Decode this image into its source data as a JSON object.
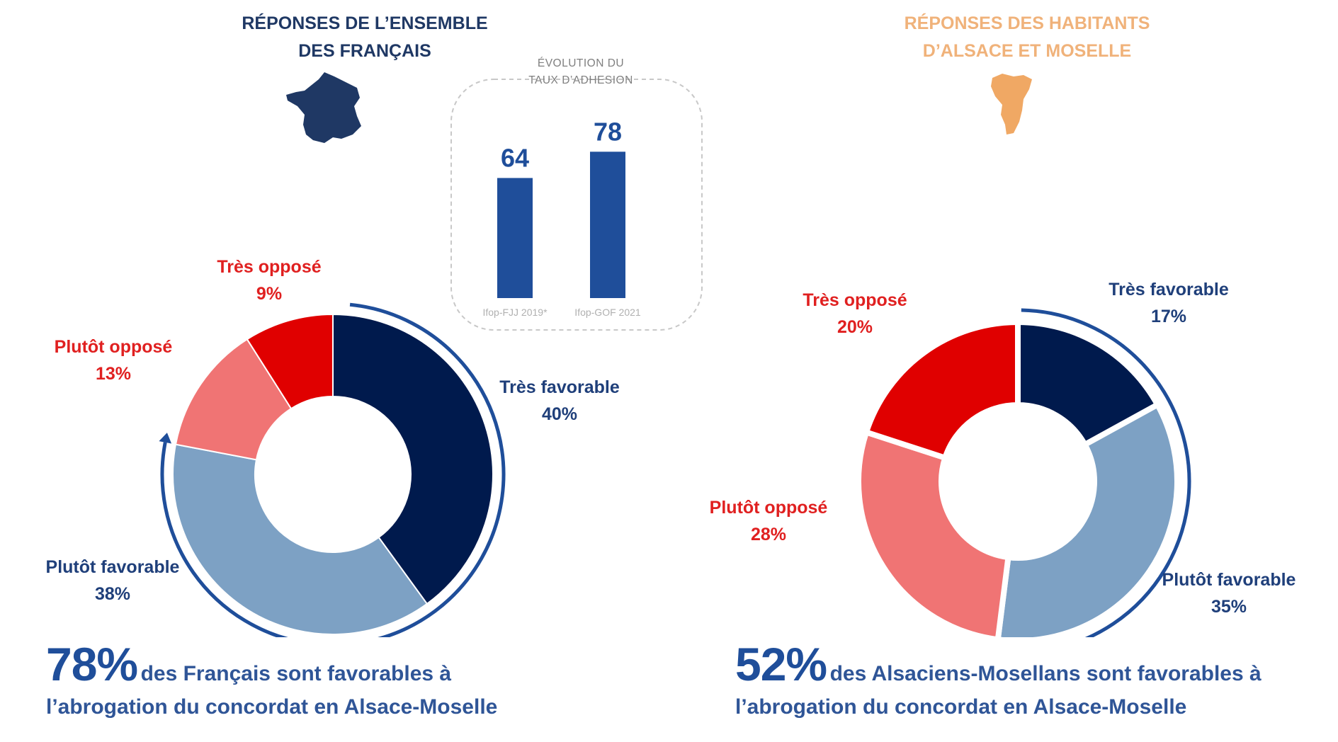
{
  "headers": {
    "france_line1": "RÉPONSES DE L’ENSEMBLE",
    "france_line2": "DES FRANÇAIS",
    "alsace_line1": "RÉPONSES DES HABITANTS",
    "alsace_line2": "D’ALSACE ET MOSELLE"
  },
  "colors": {
    "tres_favorable": "#001a4d",
    "plutot_favorable": "#7da1c4",
    "plutot_oppose": "#f07474",
    "tres_oppose": "#e00000",
    "france_map": "#1f3864",
    "alsace_map": "#f0a864",
    "arrow": "#1f4e9a"
  },
  "chart_data": [
    {
      "type": "bar",
      "title_line1": "ÉVOLUTION DU",
      "title_line2": "TAUX D’ADHESION",
      "categories": [
        "Ifop-FJJ 2019*",
        "Ifop-GOF 2021"
      ],
      "values": [
        64,
        78
      ],
      "value_labels": [
        "64",
        "78"
      ],
      "ylim": [
        0,
        100
      ]
    },
    {
      "type": "pie",
      "donut": true,
      "subset": "Ensemble des Français",
      "labels": [
        "Très favorable",
        "Plutôt favorable",
        "Plutôt opposé",
        "Très opposé"
      ],
      "values": [
        40,
        38,
        13,
        9
      ],
      "value_labels": [
        "40%",
        "38%",
        "13%",
        "9%"
      ]
    },
    {
      "type": "pie",
      "donut": true,
      "subset": "Habitants d’Alsace et Moselle",
      "labels": [
        "Très favorable",
        "Plutôt favorable",
        "Plutôt opposé",
        "Très opposé"
      ],
      "values": [
        17,
        35,
        28,
        20
      ],
      "value_labels": [
        "17%",
        "35%",
        "28%",
        "20%"
      ]
    }
  ],
  "conclusions": {
    "france_pct": "78%",
    "france_text": "des Français sont favorables à",
    "france_line2": "l’abrogation du concordat en Alsace-Moselle",
    "alsace_pct": "52%",
    "alsace_text": "des Alsaciens-Mosellans sont favorables à",
    "alsace_line2": "l’abrogation du concordat en Alsace-Moselle"
  }
}
